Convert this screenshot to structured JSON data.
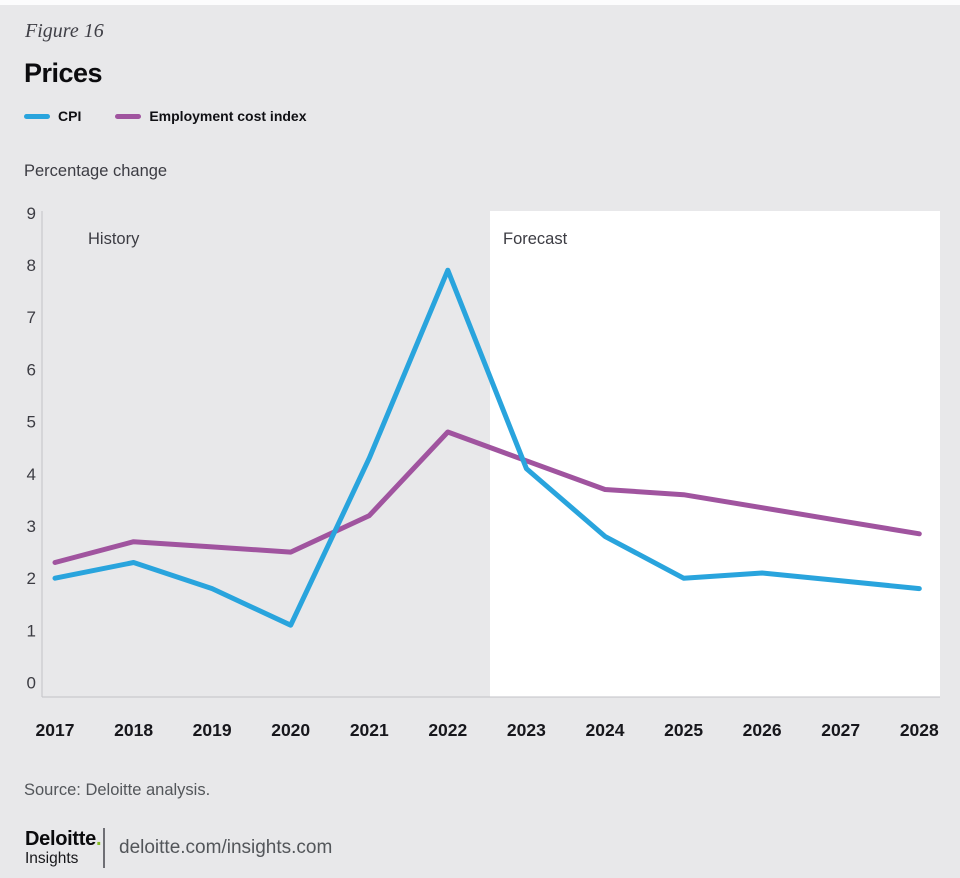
{
  "header": {
    "figure_label": "Figure 16",
    "title": "Prices"
  },
  "axis_caption": "Percentage change",
  "chart_data": {
    "type": "line",
    "title": "Prices",
    "xlabel": "",
    "ylabel": "Percentage change",
    "categories": [
      "2017",
      "2018",
      "2019",
      "2020",
      "2021",
      "2022",
      "2023",
      "2024",
      "2025",
      "2026",
      "2027",
      "2028"
    ],
    "yticks": [
      0,
      1,
      2,
      3,
      4,
      5,
      6,
      7,
      8,
      9
    ],
    "ylim": [
      0,
      9
    ],
    "grid": false,
    "legend_position": "top-left",
    "regions": [
      {
        "label": "History",
        "range": [
          "2017",
          "2022"
        ],
        "background": "#e8e8ea"
      },
      {
        "label": "Forecast",
        "range": [
          "2023",
          "2028"
        ],
        "background": "#ffffff"
      }
    ],
    "series": [
      {
        "name": "CPI",
        "color": "#29a4dd",
        "values": [
          2.0,
          2.3,
          1.8,
          1.1,
          4.3,
          7.9,
          4.1,
          2.8,
          2.0,
          2.1,
          1.95,
          1.8
        ]
      },
      {
        "name": "Employment cost index",
        "color": "#a0549f",
        "values": [
          2.3,
          2.7,
          2.6,
          2.5,
          3.2,
          4.8,
          4.25,
          3.7,
          3.6,
          3.35,
          3.1,
          2.85
        ]
      }
    ]
  },
  "colors": {
    "background": "#e8e8ea",
    "forecast_box": "#ffffff",
    "axis_line": "#c2c2c7",
    "cpi_line": "#29a4dd",
    "eci_line": "#a0549f",
    "brand_green": "#86bc25"
  },
  "footer": {
    "source": "Source: Deloitte analysis.",
    "brand_name": "Deloitte",
    "brand_dot": ".",
    "brand_sub": "Insights",
    "url": "deloitte.com/insights.com"
  }
}
